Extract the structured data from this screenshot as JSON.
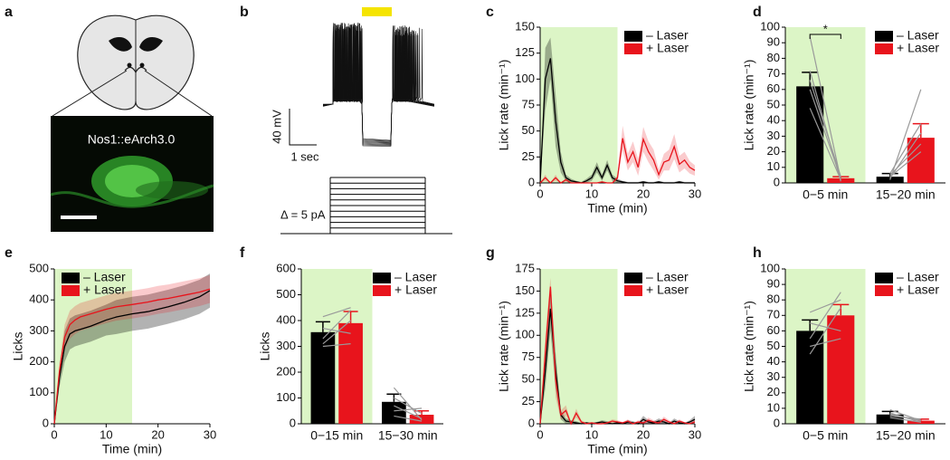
{
  "illustration": {
    "panel": "a",
    "label": "Nos1::eArch3.0"
  },
  "traces": {
    "panel": "b",
    "scale_y": "40 mV",
    "scale_x": "1 sec",
    "step": "Δ = 5 pA"
  },
  "chart_data": [
    {
      "type": "line",
      "panel": "c",
      "y_label": "Lick rate (min⁻¹)",
      "x_label": "Time (min)",
      "x": [
        0,
        1,
        2,
        3,
        4,
        5,
        6,
        7,
        8,
        9,
        10,
        11,
        12,
        13,
        14,
        15,
        16,
        17,
        18,
        19,
        20,
        21,
        22,
        23,
        24,
        25,
        26,
        27,
        28,
        29,
        30
      ],
      "xlim": [
        0,
        30
      ],
      "xticks": [
        0,
        10,
        20,
        30
      ],
      "ylim": [
        0,
        150
      ],
      "yticks": [
        0,
        25,
        50,
        75,
        100,
        125,
        150
      ],
      "shade_xlim": [
        0,
        15
      ],
      "legend": "upper right",
      "series": [
        {
          "name": "– Laser",
          "color": "#000000",
          "values": [
            0,
            100,
            120,
            60,
            20,
            5,
            2,
            1,
            0,
            2,
            5,
            15,
            5,
            17,
            5,
            2,
            1,
            0,
            0,
            0,
            1,
            0,
            0,
            1,
            0,
            0,
            0,
            1,
            0,
            0,
            0
          ],
          "error": [
            0,
            30,
            20,
            25,
            10,
            3,
            2,
            1,
            1,
            2,
            3,
            5,
            3,
            5,
            3,
            2,
            1,
            1,
            1,
            1,
            1,
            1,
            1,
            1,
            1,
            1,
            1,
            1,
            1,
            1,
            1
          ]
        },
        {
          "name": "+ Laser",
          "color": "#e8141c",
          "values": [
            0,
            5,
            0,
            5,
            0,
            3,
            0,
            0,
            0,
            0,
            0,
            0,
            1,
            0,
            0,
            5,
            43,
            20,
            30,
            15,
            42,
            30,
            22,
            8,
            20,
            22,
            35,
            18,
            22,
            15,
            12
          ],
          "error": [
            0,
            3,
            0,
            3,
            0,
            2,
            0,
            0,
            0,
            0,
            0,
            0,
            1,
            0,
            0,
            3,
            12,
            8,
            10,
            8,
            12,
            10,
            10,
            5,
            8,
            10,
            12,
            8,
            8,
            6,
            5
          ]
        }
      ]
    },
    {
      "type": "bar",
      "panel": "d",
      "y_label": "Lick rate (min⁻¹)",
      "categories": [
        "0−5 min",
        "15−20 min"
      ],
      "ylim": [
        0,
        100
      ],
      "yticks": [
        0,
        10,
        20,
        30,
        40,
        50,
        60,
        70,
        80,
        90,
        100
      ],
      "shade_first_group": true,
      "legend": "upper right",
      "annotation": "*",
      "series": [
        {
          "name": "– Laser",
          "color": "#000000",
          "values": [
            62,
            4
          ],
          "error": [
            9,
            2
          ]
        },
        {
          "name": "+ Laser",
          "color": "#e8141c",
          "values": [
            3,
            29
          ],
          "error": [
            1,
            9
          ]
        }
      ],
      "individuals": [
        [
          [
            94,
            2
          ],
          [
            72,
            1
          ],
          [
            66,
            4
          ],
          [
            60,
            3
          ],
          [
            48,
            2
          ]
        ],
        [
          [
            2,
            60
          ],
          [
            5,
            25
          ],
          [
            3,
            32
          ],
          [
            4,
            20
          ],
          [
            6,
            38
          ]
        ]
      ]
    },
    {
      "type": "line",
      "panel": "e",
      "y_label": "Licks",
      "x_label": "Time (min)",
      "x": [
        0,
        1,
        2,
        3,
        4,
        5,
        7,
        10,
        12,
        15,
        18,
        20,
        22,
        25,
        28,
        30
      ],
      "xlim": [
        0,
        30
      ],
      "xticks": [
        0,
        10,
        20,
        30
      ],
      "ylim": [
        0,
        500
      ],
      "yticks": [
        0,
        100,
        200,
        300,
        400,
        500
      ],
      "shade_xlim": [
        0,
        15
      ],
      "legend": "upper left",
      "series": [
        {
          "name": "– Laser",
          "color": "#000000",
          "values": [
            0,
            150,
            250,
            290,
            300,
            305,
            315,
            335,
            345,
            355,
            362,
            370,
            378,
            392,
            410,
            430
          ],
          "error": [
            0,
            30,
            50,
            50,
            50,
            50,
            50,
            50,
            55,
            55,
            55,
            55,
            55,
            55,
            55,
            55
          ]
        },
        {
          "name": "+ Laser",
          "color": "#e8141c",
          "values": [
            0,
            170,
            280,
            320,
            335,
            345,
            355,
            370,
            378,
            385,
            393,
            400,
            405,
            415,
            425,
            435
          ],
          "error": [
            0,
            30,
            40,
            45,
            45,
            45,
            45,
            45,
            45,
            45,
            45,
            45,
            45,
            45,
            45,
            45
          ]
        }
      ]
    },
    {
      "type": "bar",
      "panel": "f",
      "y_label": "Licks",
      "categories": [
        "0−15 min",
        "15−30 min"
      ],
      "ylim": [
        0,
        600
      ],
      "yticks": [
        0,
        100,
        200,
        300,
        400,
        500,
        600
      ],
      "shade_first_group": true,
      "legend": "upper right",
      "series": [
        {
          "name": "– Laser",
          "color": "#000000",
          "values": [
            355,
            85
          ],
          "error": [
            40,
            30
          ]
        },
        {
          "name": "+ Laser",
          "color": "#e8141c",
          "values": [
            390,
            35
          ],
          "error": [
            45,
            15
          ]
        }
      ],
      "individuals": [
        [
          [
            330,
            440
          ],
          [
            310,
            400
          ],
          [
            370,
            350
          ],
          [
            415,
            450
          ],
          [
            300,
            310
          ]
        ],
        [
          [
            140,
            15
          ],
          [
            100,
            40
          ],
          [
            70,
            20
          ],
          [
            50,
            60
          ],
          [
            30,
            10
          ]
        ]
      ]
    },
    {
      "type": "line",
      "panel": "g",
      "y_label": "Lick rate (min⁻¹)",
      "x_label": "Time (min)",
      "x": [
        0,
        1,
        2,
        3,
        4,
        5,
        6,
        7,
        8,
        9,
        10,
        11,
        12,
        13,
        14,
        15,
        16,
        17,
        18,
        19,
        20,
        21,
        22,
        23,
        24,
        25,
        26,
        27,
        28,
        29,
        30
      ],
      "xlim": [
        0,
        30
      ],
      "xticks": [
        0,
        10,
        20,
        30
      ],
      "ylim": [
        0,
        175
      ],
      "yticks": [
        0,
        25,
        50,
        75,
        100,
        125,
        150,
        175
      ],
      "shade_xlim": [
        0,
        15
      ],
      "legend": "upper right",
      "series": [
        {
          "name": "– Laser",
          "color": "#000000",
          "values": [
            0,
            60,
            130,
            60,
            10,
            3,
            2,
            1,
            0,
            1,
            0,
            1,
            2,
            1,
            0,
            1,
            0,
            2,
            1,
            0,
            5,
            2,
            1,
            3,
            2,
            0,
            3,
            1,
            0,
            2,
            5
          ],
          "error": [
            0,
            20,
            25,
            20,
            5,
            3,
            2,
            2,
            1,
            1,
            1,
            1,
            2,
            2,
            1,
            2,
            1,
            2,
            2,
            1,
            4,
            2,
            2,
            3,
            2,
            1,
            3,
            2,
            1,
            2,
            4
          ]
        },
        {
          "name": "+ Laser",
          "color": "#e8141c",
          "values": [
            0,
            80,
            155,
            50,
            10,
            15,
            0,
            12,
            2,
            0,
            1,
            0,
            0,
            1,
            3,
            2,
            1,
            3,
            0,
            2,
            1,
            4,
            2,
            1,
            5,
            2,
            0,
            3,
            1,
            0,
            2
          ],
          "error": [
            0,
            20,
            10,
            20,
            5,
            6,
            1,
            5,
            2,
            1,
            1,
            1,
            1,
            1,
            2,
            2,
            1,
            2,
            1,
            2,
            1,
            3,
            2,
            1,
            3,
            2,
            1,
            2,
            1,
            1,
            2
          ]
        }
      ]
    },
    {
      "type": "bar",
      "panel": "h",
      "y_label": "Lick rate (min⁻¹)",
      "categories": [
        "0−5 min",
        "15−20 min"
      ],
      "ylim": [
        0,
        100
      ],
      "yticks": [
        0,
        10,
        20,
        30,
        40,
        50,
        60,
        70,
        80,
        90,
        100
      ],
      "shade_first_group": true,
      "legend": "upper right",
      "series": [
        {
          "name": "– Laser",
          "color": "#000000",
          "values": [
            60,
            6
          ],
          "error": [
            7,
            2
          ]
        },
        {
          "name": "+ Laser",
          "color": "#e8141c",
          "values": [
            70,
            2
          ],
          "error": [
            7,
            1
          ]
        }
      ],
      "individuals": [
        [
          [
            55,
            85
          ],
          [
            65,
            60
          ],
          [
            72,
            80
          ],
          [
            50,
            55
          ],
          [
            45,
            75
          ]
        ],
        [
          [
            9,
            2
          ],
          [
            7,
            1
          ],
          [
            5,
            3
          ],
          [
            4,
            1
          ],
          [
            6,
            2
          ]
        ]
      ]
    }
  ]
}
